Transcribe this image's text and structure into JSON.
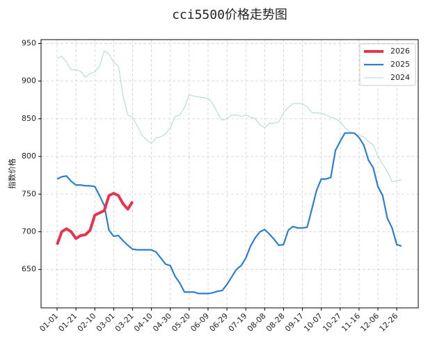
{
  "chart_data": {
    "type": "line",
    "title": "cci5500价格走势图",
    "y_label": "指数价格",
    "categories": [
      "01-01",
      null,
      null,
      null,
      "01-21",
      null,
      null,
      null,
      "02-10",
      null,
      null,
      null,
      "03-01",
      null,
      null,
      null,
      "03-21",
      null,
      null,
      null,
      "04-10",
      null,
      null,
      null,
      "04-30",
      null,
      null,
      null,
      "05-20",
      null,
      null,
      null,
      "06-09",
      null,
      null,
      null,
      "06-29",
      null,
      null,
      null,
      "07-19",
      null,
      null,
      null,
      "08-08",
      null,
      null,
      null,
      "08-28",
      null,
      null,
      null,
      "09-17",
      null,
      null,
      null,
      "10-07",
      null,
      null,
      null,
      "10-27",
      null,
      null,
      null,
      "11-16",
      null,
      null,
      null,
      "12-06",
      null,
      null,
      null,
      "12-26",
      null
    ],
    "ylim": [
      599,
      955
    ],
    "yticks": [
      650,
      700,
      750,
      800,
      850,
      900,
      950
    ],
    "grid": true,
    "legend": "upper-right",
    "series": [
      {
        "name": "2026",
        "color": "#e8334f",
        "width": 4,
        "values": [
          683,
          700,
          704,
          700,
          691,
          695,
          696,
          702,
          722,
          725,
          728,
          748,
          751,
          748,
          737,
          730,
          740,
          null,
          null,
          null,
          null,
          null,
          null,
          null,
          null,
          null,
          null,
          null,
          null,
          null,
          null,
          null,
          null,
          null,
          null,
          null,
          null,
          null,
          null,
          null,
          null,
          null,
          null,
          null,
          null,
          null,
          null,
          null,
          null,
          null,
          null,
          null,
          null,
          null,
          null,
          null,
          null,
          null,
          null,
          null,
          null,
          null,
          null,
          null,
          null,
          null,
          null,
          null,
          null,
          null,
          null,
          null,
          null,
          null
        ]
      },
      {
        "name": "2025",
        "color": "#2a7fd4",
        "width": 2.2,
        "values": [
          770,
          773,
          774,
          767,
          762,
          762,
          761,
          761,
          760,
          748,
          735,
          702,
          694,
          695,
          688,
          682,
          677,
          676,
          676,
          676,
          676,
          673,
          665,
          657,
          655,
          641,
          632,
          620,
          620,
          620,
          618,
          618,
          618,
          619,
          621,
          622,
          630,
          640,
          650,
          655,
          665,
          681,
          692,
          700,
          703,
          697,
          690,
          682,
          683,
          702,
          707,
          705,
          705,
          706,
          730,
          755,
          770,
          770,
          772,
          808,
          820,
          831,
          831,
          831,
          825,
          815,
          795,
          785,
          760,
          748,
          718,
          705,
          683,
          681
        ]
      },
      {
        "name": "2024",
        "color": "#a8dcc8",
        "width": 1,
        "values": [
          930,
          933,
          925,
          915,
          915,
          913,
          905,
          910,
          912,
          920,
          940,
          936,
          925,
          920,
          880,
          855,
          852,
          840,
          828,
          822,
          817,
          825,
          826,
          830,
          838,
          853,
          855,
          865,
          882,
          880,
          879,
          878,
          877,
          870,
          858,
          848,
          850,
          855,
          855,
          853,
          855,
          852,
          850,
          842,
          838,
          844,
          844,
          846,
          858,
          865,
          870,
          870,
          870,
          866,
          858,
          858,
          857,
          855,
          852,
          850,
          846,
          838,
          833,
          830,
          828,
          826,
          820,
          815,
          800,
          790,
          780,
          766,
          768,
          769
        ]
      }
    ]
  }
}
